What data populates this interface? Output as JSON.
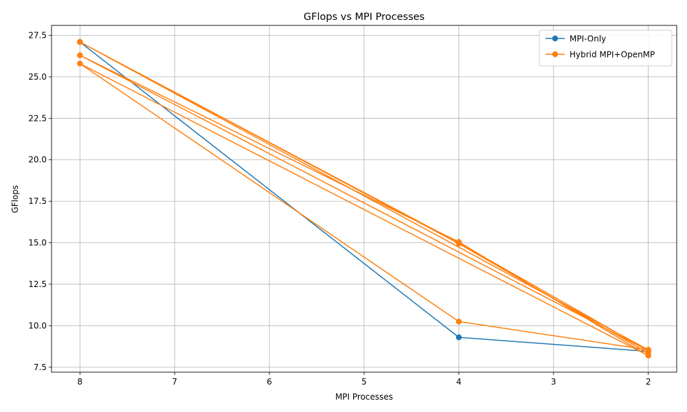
{
  "chart_data": {
    "type": "line",
    "title": "GFlops vs MPI Processes",
    "xlabel": "MPI Processes",
    "ylabel": "GFlops",
    "x_inverted": true,
    "xlim": [
      8.3,
      1.7
    ],
    "ylim": [
      7.2,
      28.1
    ],
    "xticks": [
      8,
      7,
      6,
      5,
      4,
      3,
      2
    ],
    "xtick_labels": [
      "8",
      "7",
      "6",
      "5",
      "4",
      "3",
      "2"
    ],
    "yticks": [
      7.5,
      10.0,
      12.5,
      15.0,
      17.5,
      20.0,
      22.5,
      25.0,
      27.5
    ],
    "ytick_labels": [
      "7.5",
      "10.0",
      "12.5",
      "15.0",
      "17.5",
      "20.0",
      "22.5",
      "25.0",
      "27.5"
    ],
    "grid": true,
    "legend_position": "top-right",
    "series": [
      {
        "name": "MPI-Only",
        "color": "#1f77b4",
        "marker": "circle",
        "x": [
          8,
          4,
          2
        ],
        "y": [
          27.1,
          9.3,
          8.45
        ]
      },
      {
        "name": "Hybrid MPI+OpenMP",
        "color": "#ff7f0e",
        "marker": "circle",
        "x": [
          8,
          4,
          2,
          8,
          4,
          2,
          8,
          4,
          2,
          8,
          4,
          2
        ],
        "y": [
          27.1,
          15.0,
          8.5,
          26.3,
          15.05,
          8.2,
          25.8,
          10.25,
          8.55,
          27.1,
          14.95,
          8.35
        ]
      }
    ]
  }
}
